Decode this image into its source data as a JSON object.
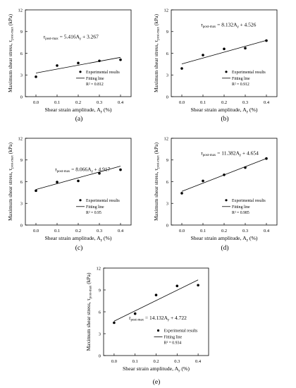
{
  "axis_labels": {
    "xlabel": "Shear strain amplitude, A",
    "xlabel_sub": "γ",
    "xlabel_unit": " (%)",
    "ylabel": "Maximum shear stress, τ",
    "ylabel_sub": "post-max",
    "ylabel_unit": " (kPa)"
  },
  "legend": {
    "experimental": "Experimental results",
    "fitting": "Fitting line"
  },
  "chart_data": [
    {
      "panel_label": "(a)",
      "type": "scatter",
      "x": [
        0.0,
        0.1,
        0.2,
        0.3,
        0.4
      ],
      "y": [
        2.75,
        4.3,
        4.65,
        4.95,
        5.1
      ],
      "fit": {
        "slope": 5.416,
        "intercept": 3.267,
        "eq_left": "τ",
        "eq_sub": "post-max",
        "eq_mid": " = 5.416A",
        "eq_sub2": "γ",
        "eq_right": " + 3.267",
        "r2": "R² = 0.812"
      },
      "xticks": [
        "0.0",
        "0.1",
        "0.2",
        "0.3",
        "0.4"
      ],
      "yticks": [
        "0",
        "3",
        "6",
        "9",
        "12"
      ],
      "xlim": [
        -0.05,
        0.45
      ],
      "ylim": [
        0,
        12
      ]
    },
    {
      "panel_label": "(b)",
      "type": "scatter",
      "x": [
        0.0,
        0.1,
        0.2,
        0.3,
        0.4
      ],
      "y": [
        3.9,
        5.75,
        6.6,
        6.7,
        7.75
      ],
      "fit": {
        "slope": 8.132,
        "intercept": 4.526,
        "eq_left": "τ",
        "eq_sub": "post-max",
        "eq_mid": " = 8.132A",
        "eq_sub2": "γ",
        "eq_right": " + 4.526",
        "r2": "R² = 0.912"
      },
      "xticks": [
        "0.0",
        "0.1",
        "0.2",
        "0.3",
        "0.4"
      ],
      "yticks": [
        "0",
        "3",
        "6",
        "9",
        "12"
      ],
      "xlim": [
        -0.05,
        0.45
      ],
      "ylim": [
        0,
        12
      ]
    },
    {
      "panel_label": "(c)",
      "type": "scatter",
      "x": [
        0.0,
        0.1,
        0.2,
        0.3,
        0.4
      ],
      "y": [
        4.75,
        5.95,
        6.1,
        7.15,
        7.65
      ],
      "fit": {
        "slope": 8.066,
        "intercept": 4.917,
        "eq_left": "τ",
        "eq_sub": "post-max",
        "eq_mid": " = 8.066A",
        "eq_sub2": "γ",
        "eq_right": " + 4.917",
        "r2": "R² = 0.95"
      },
      "xticks": [
        "0.0",
        "0.1",
        "0.2",
        "0.3",
        "0.4"
      ],
      "yticks": [
        "0",
        "3",
        "6",
        "9",
        "12"
      ],
      "xlim": [
        -0.05,
        0.45
      ],
      "ylim": [
        0,
        12
      ]
    },
    {
      "panel_label": "(d)",
      "type": "scatter",
      "x": [
        0.0,
        0.1,
        0.2,
        0.3,
        0.4
      ],
      "y": [
        4.4,
        6.1,
        6.95,
        7.95,
        9.2
      ],
      "fit": {
        "slope": 11.382,
        "intercept": 4.654,
        "eq_left": "τ",
        "eq_sub": "post-max",
        "eq_mid": " = 11.382A",
        "eq_sub2": "γ",
        "eq_right": " + 4.654",
        "r2": "R² = 0.985"
      },
      "xticks": [
        "0.0",
        "0.1",
        "0.2",
        "0.3",
        "0.4"
      ],
      "yticks": [
        "0",
        "3",
        "6",
        "9",
        "12"
      ],
      "xlim": [
        -0.05,
        0.45
      ],
      "ylim": [
        0,
        12
      ]
    },
    {
      "panel_label": "(e)",
      "type": "scatter",
      "x": [
        0.0,
        0.1,
        0.2,
        0.3,
        0.4
      ],
      "y": [
        4.5,
        5.75,
        8.3,
        9.55,
        9.65
      ],
      "fit": {
        "slope": 14.132,
        "intercept": 4.722,
        "eq_left": "τ",
        "eq_sub": "post-max",
        "eq_mid": " = 14.132A",
        "eq_sub2": "γ",
        "eq_right": " + 4.722",
        "r2": "R² = 0.934"
      },
      "xticks": [
        "0.0",
        "0.1",
        "0.2",
        "0.3",
        "0.4"
      ],
      "yticks": [
        "0",
        "3",
        "6",
        "9",
        "12"
      ],
      "xlim": [
        -0.05,
        0.45
      ],
      "ylim": [
        0,
        12
      ]
    }
  ]
}
